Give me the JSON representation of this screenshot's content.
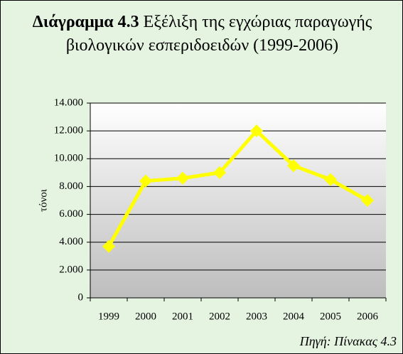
{
  "chart_data": {
    "type": "line",
    "title_label": "Διάγραμμα 4.3",
    "title": "Εξέλιξη της εγχώριας παραγωγής βιολογικών εσπεριδοειδών (1999-2006)",
    "y_label": "τόνοι",
    "source": "Πηγή: Πίνακας 4.3",
    "categories": [
      "1999",
      "2000",
      "2001",
      "2002",
      "2003",
      "2004",
      "2005",
      "2006"
    ],
    "series": [
      {
        "name": "τόνοι",
        "color": "#ffff00",
        "values": [
          3700,
          8400,
          8600,
          9000,
          12000,
          9500,
          8500,
          7000
        ]
      }
    ],
    "ylim": [
      0,
      14000
    ],
    "yticks": [
      0,
      {
        "value": 2000,
        "label": "2.000"
      },
      {
        "value": 4000,
        "label": "4.000"
      },
      {
        "value": 6000,
        "label": "6.000"
      },
      {
        "value": 8000,
        "label": "8.000"
      },
      {
        "value": 10000,
        "label": "10.000"
      },
      {
        "value": 12000,
        "label": "12.000"
      },
      {
        "value": 14000,
        "label": "14.000"
      }
    ],
    "grid": true
  }
}
